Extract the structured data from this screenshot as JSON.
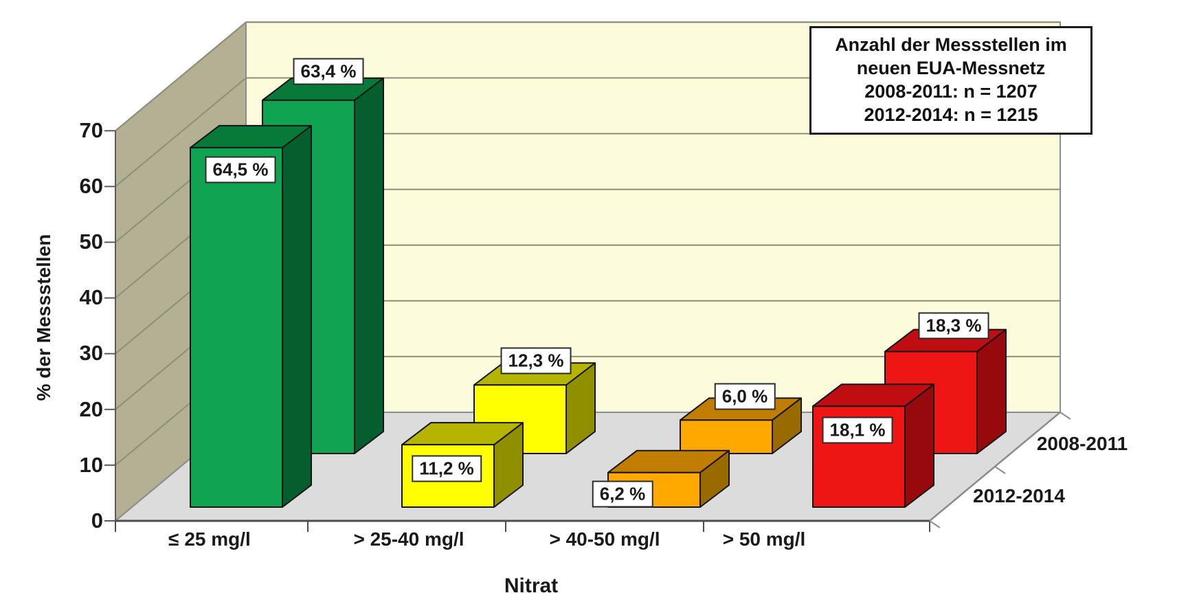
{
  "chart_data": {
    "type": "bar",
    "projection": "3d",
    "title": "",
    "xlabel": "Nitrat",
    "ylabel": "% der Messstellen",
    "categories": [
      "≤ 25 mg/l",
      "> 25-40 mg/l",
      "> 40-50 mg/l",
      "> 50 mg/l"
    ],
    "series": [
      {
        "name": "2008-2011",
        "values": [
          63.4,
          12.3,
          6.0,
          18.3
        ],
        "point_labels": [
          "63,4 %",
          "12,3 %",
          "6,0 %",
          "18,3 %"
        ]
      },
      {
        "name": "2012-2014",
        "values": [
          64.5,
          11.2,
          6.2,
          18.1
        ],
        "point_labels": [
          "64,5 %",
          "11,2 %",
          "6,2 %",
          "18,1 %"
        ]
      }
    ],
    "ylim": [
      0,
      70
    ],
    "yticks": [
      0,
      10,
      20,
      30,
      40,
      50,
      60,
      70
    ],
    "ytick_labels": [
      "0",
      "10",
      "20",
      "30",
      "40",
      "50",
      "60",
      "70"
    ],
    "grid": true,
    "legend_position": "depth-axis-right",
    "annotation_box": {
      "lines": [
        "Anzahl der Messstellen im",
        "neuen EUA-Messnetz",
        "2008-2011: n = 1207",
        "2012-2014: n = 1215"
      ]
    },
    "bar_colors": [
      {
        "front": "#0fa352",
        "top": "#077a3a",
        "side": "#055e2d"
      },
      {
        "front": "#ffff02",
        "top": "#b5b400",
        "side": "#8f8f00"
      },
      {
        "front": "#ffa800",
        "top": "#c07d00",
        "side": "#996a00"
      },
      {
        "front": "#ee1515",
        "top": "#c00d12",
        "side": "#97090d"
      }
    ],
    "scene_colors": {
      "wall_back": "#fcfbdc",
      "wall_side": "#b3b093",
      "floor": "#dcdcdc",
      "grid": "#8f8d78",
      "axis": "#5a5a5a",
      "edge": "#8c8c8c",
      "bar_outline": "#141414"
    }
  }
}
